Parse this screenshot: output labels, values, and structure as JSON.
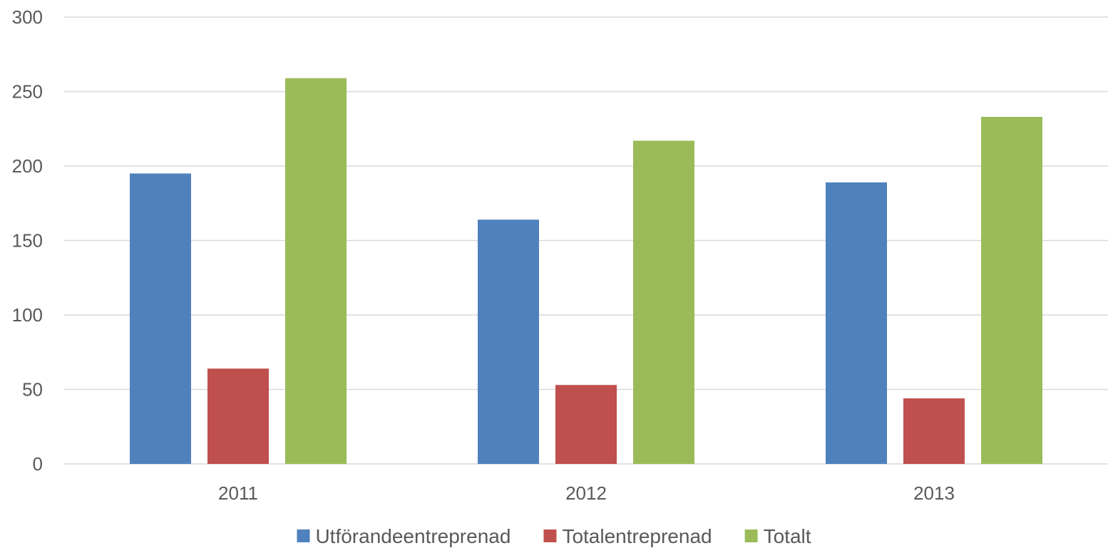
{
  "chart_data": {
    "type": "bar",
    "title": "",
    "xlabel": "",
    "ylabel": "",
    "categories": [
      "2011",
      "2012",
      "2013"
    ],
    "series": [
      {
        "name": "Utförandeentreprenad",
        "values": [
          195,
          164,
          189
        ],
        "color": "#4f81bd"
      },
      {
        "name": "Totalentreprenad",
        "values": [
          64,
          53,
          44
        ],
        "color": "#c0504d"
      },
      {
        "name": "Totalt",
        "values": [
          259,
          217,
          233
        ],
        "color": "#9bbb59"
      }
    ],
    "ylim": [
      0,
      300
    ],
    "yticks": [
      "0",
      "50",
      "100",
      "150",
      "200",
      "250",
      "300"
    ],
    "grid": true,
    "legend_position": "bottom"
  }
}
